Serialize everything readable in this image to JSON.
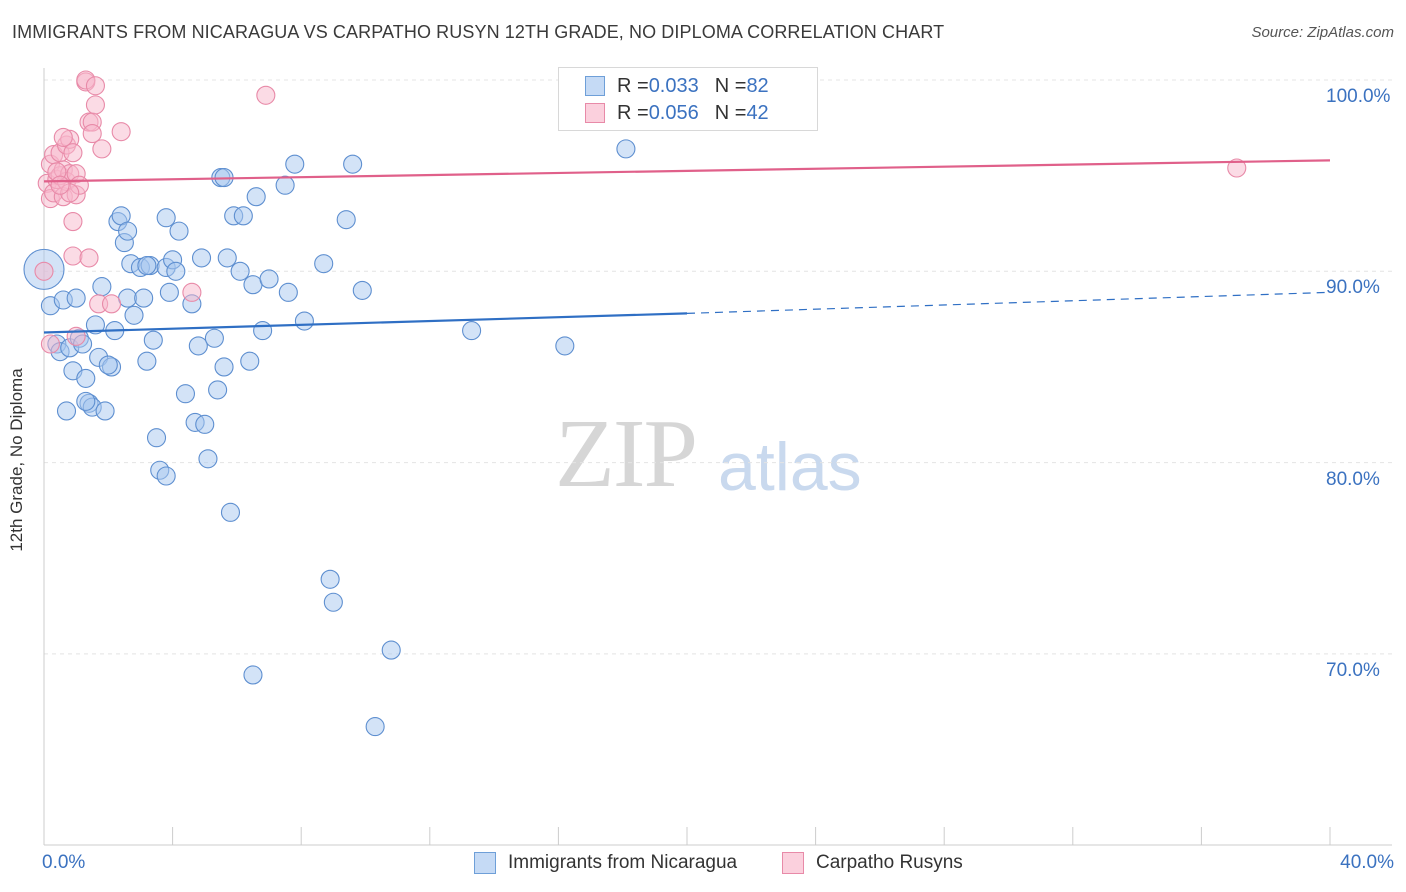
{
  "chart_data": {
    "type": "scatter",
    "title": "IMMIGRANTS FROM NICARAGUA VS CARPATHO RUSYN 12TH GRADE, NO DIPLOMA CORRELATION CHART",
    "source": "Source: ZipAtlas.com",
    "ylabel": "12th Grade, No Diploma",
    "xlabel": "",
    "xlim": [
      0,
      40
    ],
    "ylim": [
      61,
      102
    ],
    "x_tick_labels": [
      "0.0%",
      "40.0%"
    ],
    "y_ticks": [
      100,
      90,
      80,
      70
    ],
    "y_tick_labels": [
      "100.0%",
      "90.0%",
      "80.0%",
      "70.0%"
    ],
    "grid": true,
    "legend_position": "top-center",
    "watermark": {
      "zip": "ZIP",
      "atlas": "atlas"
    },
    "legend": [
      {
        "name": "Immigrants from Nicaragua",
        "r_label": "R = ",
        "r": "0.033",
        "n_label": "N = ",
        "n": "82",
        "color": "#a8c8f0",
        "edge": "#6e9fd8"
      },
      {
        "name": "Carpatho Rusyns",
        "r_label": "R = ",
        "r": "0.056",
        "n_label": "N = ",
        "n": "42",
        "color": "#f8b8cc",
        "edge": "#e88aa8"
      }
    ],
    "series": [
      {
        "name": "Immigrants from Nicaragua",
        "color": "#a8c8f0",
        "edge": "#5e8fd0",
        "trend": {
          "x0": 0,
          "y0": 86.8,
          "x1": 20,
          "y1": 87.8,
          "x_dash_end": 40,
          "y_dash_end": 88.9,
          "color": "#2f6fc4"
        },
        "points": [
          [
            0.0,
            90.1
          ],
          [
            0.2,
            88.2
          ],
          [
            0.4,
            86.2
          ],
          [
            0.5,
            85.8
          ],
          [
            0.6,
            88.5
          ],
          [
            0.7,
            82.7
          ],
          [
            0.8,
            86.0
          ],
          [
            0.9,
            84.8
          ],
          [
            1.0,
            88.6
          ],
          [
            1.1,
            86.5
          ],
          [
            1.2,
            86.2
          ],
          [
            1.3,
            84.4
          ],
          [
            1.4,
            83.1
          ],
          [
            1.5,
            82.9
          ],
          [
            1.6,
            87.2
          ],
          [
            1.7,
            85.5
          ],
          [
            1.8,
            89.2
          ],
          [
            1.9,
            82.7
          ],
          [
            2.1,
            85.0
          ],
          [
            2.2,
            86.9
          ],
          [
            2.3,
            92.6
          ],
          [
            2.4,
            92.9
          ],
          [
            2.5,
            91.5
          ],
          [
            2.6,
            92.1
          ],
          [
            2.6,
            88.6
          ],
          [
            2.7,
            90.4
          ],
          [
            2.8,
            87.7
          ],
          [
            3.0,
            90.2
          ],
          [
            3.1,
            88.6
          ],
          [
            3.2,
            85.3
          ],
          [
            3.3,
            90.3
          ],
          [
            3.4,
            86.4
          ],
          [
            3.5,
            81.3
          ],
          [
            3.6,
            79.6
          ],
          [
            3.8,
            90.2
          ],
          [
            3.8,
            79.3
          ],
          [
            3.8,
            92.8
          ],
          [
            3.9,
            88.9
          ],
          [
            4.0,
            90.6
          ],
          [
            4.1,
            90.0
          ],
          [
            4.2,
            92.1
          ],
          [
            4.4,
            83.6
          ],
          [
            4.6,
            88.3
          ],
          [
            4.7,
            82.1
          ],
          [
            4.8,
            86.1
          ],
          [
            4.9,
            90.7
          ],
          [
            5.0,
            82.0
          ],
          [
            5.1,
            80.2
          ],
          [
            5.3,
            86.5
          ],
          [
            5.4,
            83.8
          ],
          [
            5.5,
            94.9
          ],
          [
            5.6,
            85.0
          ],
          [
            5.7,
            90.7
          ],
          [
            5.8,
            77.4
          ],
          [
            5.9,
            92.9
          ],
          [
            6.2,
            92.9
          ],
          [
            6.1,
            90.0
          ],
          [
            6.4,
            85.3
          ],
          [
            6.5,
            89.3
          ],
          [
            6.6,
            93.9
          ],
          [
            6.8,
            86.9
          ],
          [
            7.0,
            89.6
          ],
          [
            7.5,
            94.5
          ],
          [
            7.6,
            88.9
          ],
          [
            7.8,
            95.6
          ],
          [
            8.1,
            87.4
          ],
          [
            8.7,
            90.4
          ],
          [
            8.9,
            73.9
          ],
          [
            9.0,
            72.7
          ],
          [
            9.4,
            92.7
          ],
          [
            9.6,
            95.6
          ],
          [
            9.9,
            89.0
          ],
          [
            10.8,
            70.2
          ],
          [
            10.3,
            66.2
          ],
          [
            6.5,
            68.9
          ],
          [
            13.3,
            86.9
          ],
          [
            16.2,
            86.1
          ],
          [
            18.1,
            96.4
          ],
          [
            5.6,
            94.9
          ],
          [
            3.2,
            90.3
          ],
          [
            2.0,
            85.1
          ],
          [
            1.3,
            83.2
          ]
        ]
      },
      {
        "name": "Carpatho Rusyns",
        "color": "#f8b8cc",
        "edge": "#e88aa8",
        "trend": {
          "x0": 0,
          "y0": 94.7,
          "x1": 40,
          "y1": 95.8,
          "color": "#e0608a"
        },
        "points": [
          [
            0.1,
            94.6
          ],
          [
            0.2,
            93.8
          ],
          [
            0.2,
            95.6
          ],
          [
            0.3,
            96.1
          ],
          [
            0.3,
            94.1
          ],
          [
            0.4,
            94.8
          ],
          [
            0.5,
            95.0
          ],
          [
            0.5,
            96.2
          ],
          [
            0.6,
            95.3
          ],
          [
            0.6,
            93.9
          ],
          [
            0.7,
            96.6
          ],
          [
            0.7,
            94.7
          ],
          [
            0.8,
            96.9
          ],
          [
            0.8,
            95.1
          ],
          [
            0.9,
            92.6
          ],
          [
            0.9,
            96.2
          ],
          [
            1.0,
            94.0
          ],
          [
            1.0,
            95.1
          ],
          [
            1.1,
            94.5
          ],
          [
            0.9,
            90.8
          ],
          [
            1.0,
            86.6
          ],
          [
            1.3,
            99.9
          ],
          [
            1.3,
            100.0
          ],
          [
            1.4,
            97.8
          ],
          [
            1.4,
            90.7
          ],
          [
            1.5,
            97.8
          ],
          [
            1.5,
            97.2
          ],
          [
            1.6,
            98.7
          ],
          [
            1.6,
            99.7
          ],
          [
            1.7,
            88.3
          ],
          [
            1.8,
            96.4
          ],
          [
            2.1,
            88.3
          ],
          [
            2.4,
            97.3
          ],
          [
            4.6,
            88.9
          ],
          [
            6.9,
            99.2
          ],
          [
            37.1,
            95.4
          ],
          [
            0.0,
            90.0
          ],
          [
            0.4,
            95.2
          ],
          [
            0.6,
            97.0
          ],
          [
            0.8,
            94.1
          ],
          [
            0.2,
            86.2
          ],
          [
            0.5,
            94.5
          ]
        ]
      }
    ]
  }
}
